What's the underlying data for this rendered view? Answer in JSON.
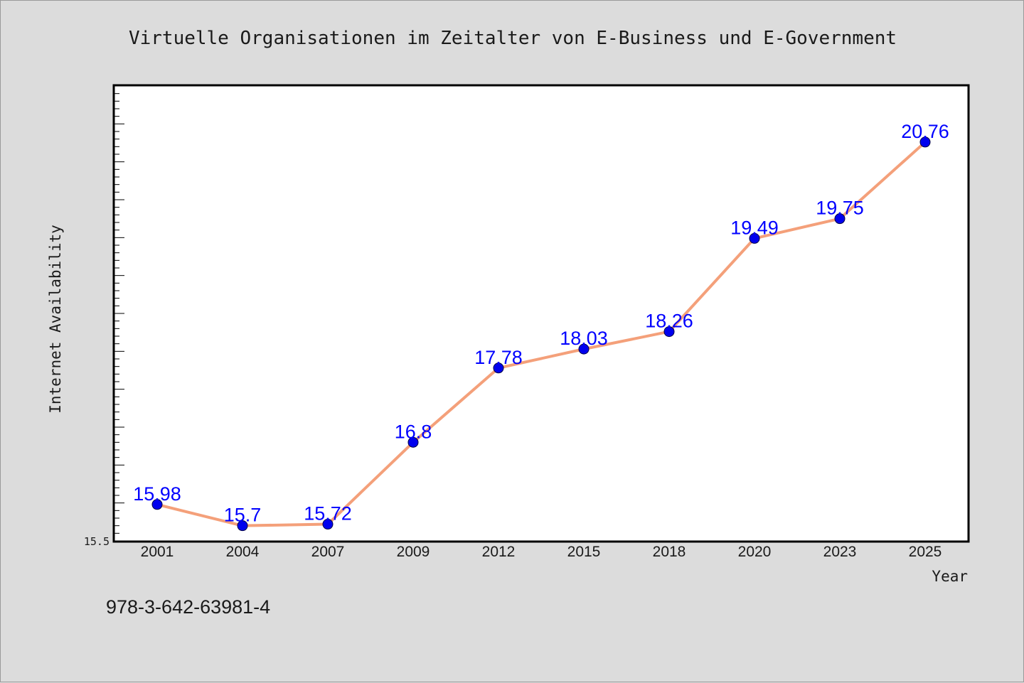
{
  "chart_data": {
    "type": "line",
    "title": "Virtuelle Organisationen im Zeitalter von E-Business und E-Government",
    "xlabel": "Year",
    "ylabel": "Internet Availability",
    "ymin_label": "15.5",
    "ylim": [
      15.5,
      21.5
    ],
    "categories": [
      "2001",
      "2004",
      "2007",
      "2009",
      "2012",
      "2015",
      "2018",
      "2020",
      "2023",
      "2025"
    ],
    "series": [
      {
        "values": [
          15.98,
          15.7,
          15.72,
          16.8,
          17.78,
          18.03,
          18.26,
          19.49,
          19.75,
          20.76
        ],
        "labels": [
          "15.98",
          "15.7",
          "15.72",
          "16.8",
          "17.78",
          "18.03",
          "18.26",
          "19.49",
          "19.75",
          "20.76"
        ],
        "line_color": "#f4a07a",
        "marker_color": "#0000ee",
        "label_color": "#0000ff"
      }
    ],
    "grid": false,
    "legend": "none"
  },
  "footnote": "978-3-642-63981-4"
}
